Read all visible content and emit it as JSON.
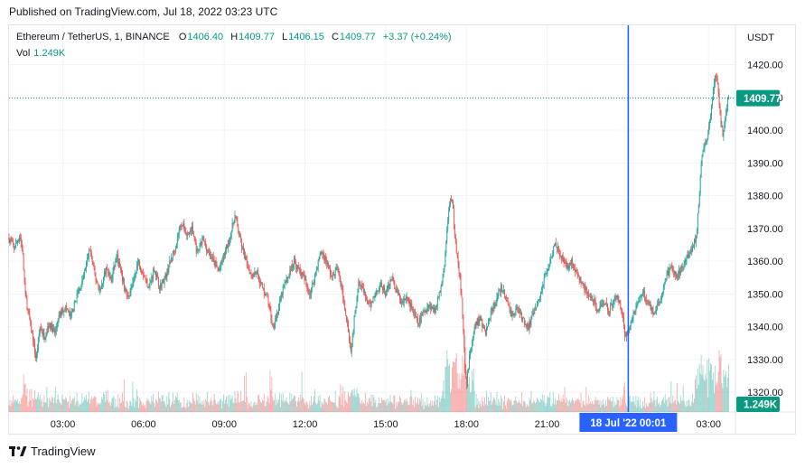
{
  "header": {
    "published": "Published on TradingView.com, Jul 18, 2022 03:23 UTC"
  },
  "legend": {
    "symbol": "Ethereum / TetherUS, 1, BINANCE",
    "open_label": "O",
    "open": "1406.40",
    "high_label": "H",
    "high": "1409.77",
    "low_label": "L",
    "low": "1406.15",
    "close_label": "C",
    "close": "1409.77",
    "change": "+3.37 (+0.24%)",
    "vol_label": "Vol",
    "vol": "1.249K"
  },
  "footer": {
    "brand": "TradingView"
  },
  "colors": {
    "up": "#26a69a",
    "down": "#ef5350",
    "price_badge": "#089981",
    "crosshair": "#2962ff",
    "grid": "#f0f3fa"
  },
  "chart_data": {
    "type": "candlestick",
    "currency": "USDT",
    "current_price_label": "1409.77",
    "volume_badge": "1.249K",
    "crosshair_time_label": "18 Jul '22   00:01",
    "y_ticks": [
      "1420.00",
      "1410.00",
      "1400.00",
      "1390.00",
      "1380.00",
      "1370.00",
      "1360.00",
      "1350.00",
      "1340.00",
      "1330.00",
      "1320.00"
    ],
    "y_values": [
      1420,
      1410,
      1400,
      1390,
      1380,
      1370,
      1360,
      1350,
      1340,
      1330,
      1320
    ],
    "x_ticks": [
      "03:00",
      "06:00",
      "09:00",
      "12:00",
      "15:00",
      "18:00",
      "21:00",
      "03:00"
    ],
    "x_ticks_hours": [
      3,
      6,
      9,
      12,
      15,
      18,
      21,
      27
    ],
    "crosshair_hours": 24.0167,
    "x_range_hours": [
      1,
      28
    ],
    "y_range": [
      1314,
      1432
    ],
    "grid": true,
    "path": [
      [
        1.0,
        1367
      ],
      [
        1.2,
        1364
      ],
      [
        1.4,
        1368
      ],
      [
        1.5,
        1363
      ],
      [
        1.6,
        1350
      ],
      [
        1.8,
        1340
      ],
      [
        1.9,
        1336
      ],
      [
        2.0,
        1330
      ],
      [
        2.15,
        1340
      ],
      [
        2.3,
        1337
      ],
      [
        2.5,
        1341
      ],
      [
        2.7,
        1338
      ],
      [
        2.9,
        1344
      ],
      [
        3.1,
        1346
      ],
      [
        3.3,
        1343
      ],
      [
        3.5,
        1349
      ],
      [
        3.7,
        1353
      ],
      [
        3.9,
        1360
      ],
      [
        4.0,
        1364
      ],
      [
        4.2,
        1355
      ],
      [
        4.4,
        1351
      ],
      [
        4.6,
        1358
      ],
      [
        4.8,
        1354
      ],
      [
        5.0,
        1362
      ],
      [
        5.2,
        1355
      ],
      [
        5.4,
        1349
      ],
      [
        5.6,
        1353
      ],
      [
        5.8,
        1360
      ],
      [
        6.0,
        1356
      ],
      [
        6.2,
        1352
      ],
      [
        6.4,
        1358
      ],
      [
        6.6,
        1352
      ],
      [
        6.8,
        1355
      ],
      [
        7.0,
        1360
      ],
      [
        7.2,
        1365
      ],
      [
        7.4,
        1372
      ],
      [
        7.6,
        1368
      ],
      [
        7.8,
        1370
      ],
      [
        8.0,
        1362
      ],
      [
        8.2,
        1367
      ],
      [
        8.4,
        1363
      ],
      [
        8.6,
        1360
      ],
      [
        8.8,
        1357
      ],
      [
        9.0,
        1362
      ],
      [
        9.2,
        1367
      ],
      [
        9.4,
        1374
      ],
      [
        9.6,
        1366
      ],
      [
        9.8,
        1360
      ],
      [
        10.0,
        1356
      ],
      [
        10.2,
        1357
      ],
      [
        10.4,
        1352
      ],
      [
        10.6,
        1349
      ],
      [
        10.8,
        1340
      ],
      [
        11.0,
        1345
      ],
      [
        11.2,
        1352
      ],
      [
        11.4,
        1356
      ],
      [
        11.6,
        1360
      ],
      [
        11.8,
        1357
      ],
      [
        12.0,
        1354
      ],
      [
        12.2,
        1350
      ],
      [
        12.4,
        1357
      ],
      [
        12.6,
        1363
      ],
      [
        12.8,
        1360
      ],
      [
        13.0,
        1355
      ],
      [
        13.2,
        1358
      ],
      [
        13.4,
        1350
      ],
      [
        13.6,
        1340
      ],
      [
        13.7,
        1332
      ],
      [
        13.8,
        1340
      ],
      [
        14.0,
        1355
      ],
      [
        14.2,
        1350
      ],
      [
        14.4,
        1346
      ],
      [
        14.6,
        1350
      ],
      [
        14.8,
        1353
      ],
      [
        15.0,
        1350
      ],
      [
        15.2,
        1355
      ],
      [
        15.4,
        1351
      ],
      [
        15.6,
        1347
      ],
      [
        15.8,
        1349
      ],
      [
        16.0,
        1345
      ],
      [
        16.2,
        1341
      ],
      [
        16.4,
        1344
      ],
      [
        16.6,
        1347
      ],
      [
        16.8,
        1345
      ],
      [
        17.0,
        1350
      ],
      [
        17.2,
        1360
      ],
      [
        17.3,
        1372
      ],
      [
        17.4,
        1380
      ],
      [
        17.5,
        1376
      ],
      [
        17.6,
        1365
      ],
      [
        17.75,
        1356
      ],
      [
        17.85,
        1345
      ],
      [
        17.95,
        1327
      ],
      [
        18.0,
        1322
      ],
      [
        18.1,
        1330
      ],
      [
        18.3,
        1340
      ],
      [
        18.5,
        1343
      ],
      [
        18.7,
        1338
      ],
      [
        18.9,
        1344
      ],
      [
        19.1,
        1348
      ],
      [
        19.3,
        1352
      ],
      [
        19.5,
        1348
      ],
      [
        19.7,
        1343
      ],
      [
        19.9,
        1346
      ],
      [
        20.1,
        1342
      ],
      [
        20.3,
        1340
      ],
      [
        20.5,
        1344
      ],
      [
        20.7,
        1348
      ],
      [
        20.9,
        1355
      ],
      [
        21.1,
        1360
      ],
      [
        21.3,
        1366
      ],
      [
        21.5,
        1362
      ],
      [
        21.7,
        1358
      ],
      [
        21.9,
        1360
      ],
      [
        22.1,
        1356
      ],
      [
        22.3,
        1353
      ],
      [
        22.5,
        1350
      ],
      [
        22.7,
        1348
      ],
      [
        22.9,
        1345
      ],
      [
        23.1,
        1348
      ],
      [
        23.3,
        1345
      ],
      [
        23.6,
        1350
      ],
      [
        23.8,
        1344
      ],
      [
        23.9,
        1336
      ],
      [
        24.0167,
        1339
      ],
      [
        24.2,
        1344
      ],
      [
        24.4,
        1348
      ],
      [
        24.6,
        1350
      ],
      [
        24.8,
        1347
      ],
      [
        25.0,
        1344
      ],
      [
        25.2,
        1348
      ],
      [
        25.4,
        1355
      ],
      [
        25.6,
        1358
      ],
      [
        25.8,
        1355
      ],
      [
        26.0,
        1358
      ],
      [
        26.2,
        1362
      ],
      [
        26.4,
        1364
      ],
      [
        26.55,
        1368
      ],
      [
        26.65,
        1380
      ],
      [
        26.75,
        1392
      ],
      [
        26.85,
        1395
      ],
      [
        26.95,
        1398
      ],
      [
        27.05,
        1402
      ],
      [
        27.15,
        1410
      ],
      [
        27.25,
        1417
      ],
      [
        27.35,
        1413
      ],
      [
        27.45,
        1402
      ],
      [
        27.55,
        1398
      ],
      [
        27.65,
        1406
      ],
      [
        27.75,
        1409.77
      ]
    ]
  }
}
